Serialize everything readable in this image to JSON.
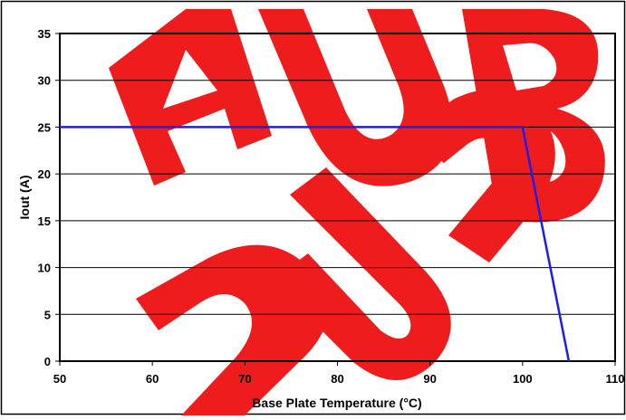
{
  "chart_data": {
    "type": "line",
    "title": "",
    "xlabel": "Base Plate Temperature (°C)",
    "ylabel": "Iout (A)",
    "xlim": [
      50,
      110
    ],
    "ylim": [
      0,
      35
    ],
    "x_ticks": [
      "50",
      "60",
      "70",
      "80",
      "90",
      "100",
      "110"
    ],
    "y_ticks": [
      "0",
      "5",
      "10",
      "15",
      "20",
      "25",
      "30",
      "35"
    ],
    "grid": "horizontal",
    "legend": "none",
    "series": [
      {
        "color": "#1e1ee6",
        "points": [
          [
            50,
            25
          ],
          [
            100,
            25
          ],
          [
            105,
            0
          ]
        ]
      }
    ]
  },
  "watermark": {
    "text": "AUB",
    "color": "#ee1c1c"
  }
}
